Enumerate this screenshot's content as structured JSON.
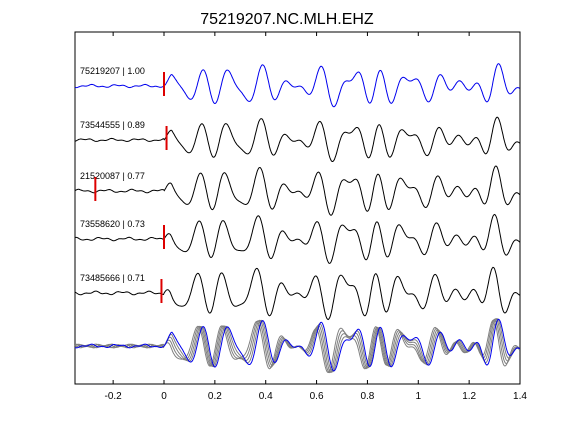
{
  "chart_data": {
    "type": "line",
    "title": "75219207.NC.MLH.EHZ",
    "xlabel": "",
    "ylabel": "",
    "xlim": [
      -0.35,
      1.4
    ],
    "xticks": [
      -0.2,
      0,
      0.2,
      0.4,
      0.6,
      0.8,
      1,
      1.2,
      1.4
    ],
    "xtick_labels": [
      "-0.2",
      "0",
      "0.2",
      "0.4",
      "0.6",
      "0.8",
      "1",
      "1.2",
      "1.4"
    ],
    "grid": false,
    "traces": [
      {
        "label": "75219207 | 1.00",
        "pick_time": 0.0,
        "color": "#0000ee"
      },
      {
        "label": "73544555 | 0.89",
        "pick_time": 0.01,
        "color": "#000000"
      },
      {
        "label": "21520087 | 0.77",
        "pick_time": -0.27,
        "color": "#000000"
      },
      {
        "label": "73558620 | 0.73",
        "pick_time": 0.0,
        "color": "#000000"
      },
      {
        "label": "73485666 | 0.71",
        "pick_time": -0.01,
        "color": "#000000"
      }
    ],
    "stack_colors": {
      "reference": "#0000ee",
      "others": "#808080"
    },
    "pick_color": "#dd0000"
  }
}
